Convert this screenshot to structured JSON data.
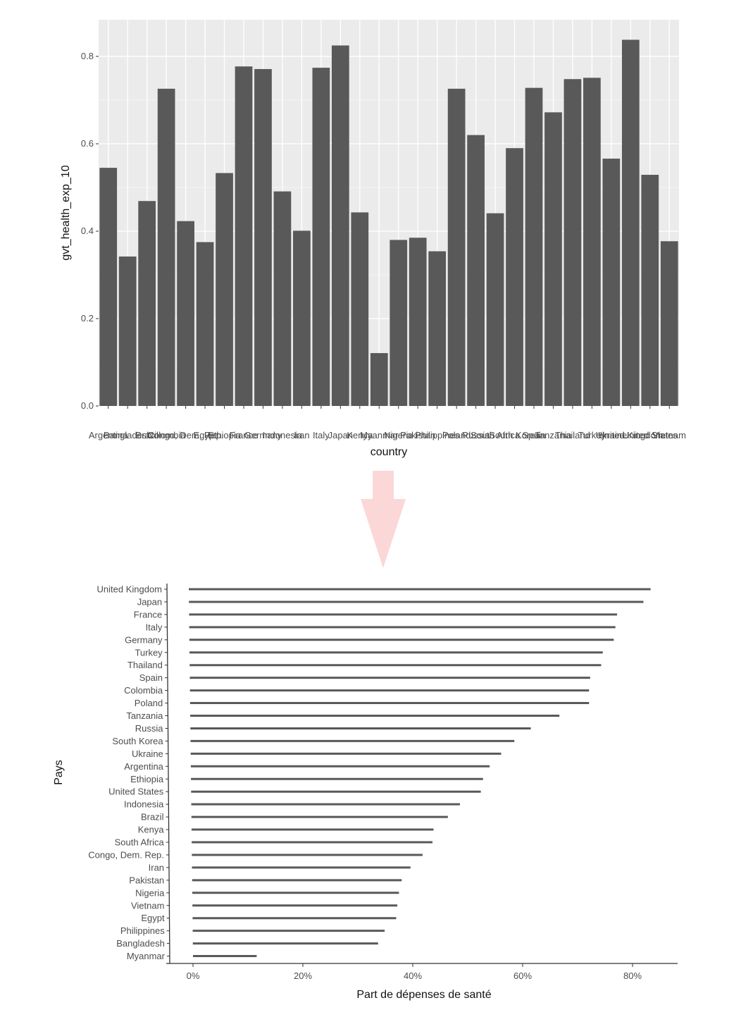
{
  "colors": {
    "panel_bg": "#ebebeb",
    "grid_major": "#ffffff",
    "bar": "#595959",
    "arrow": "#fcd7d7",
    "text": "#4d4d4d",
    "axis_line": "#333333"
  },
  "arrow_icon": "down-arrow-icon",
  "chart_data": [
    {
      "type": "bar",
      "xlabel": "country",
      "ylabel": "gvt_health_exp_10",
      "ylim": [
        0,
        0.88
      ],
      "yticks": [
        0.0,
        0.2,
        0.4,
        0.6,
        0.8
      ],
      "ytick_labels": [
        "0.0",
        "0.2",
        "0.4",
        "0.6",
        "0.8"
      ],
      "grid": true,
      "categories": [
        "Argentina",
        "Bangladesh",
        "Brazil",
        "Colombia",
        "Congo, Dem. Rep.",
        "Egypt",
        "Ethiopia",
        "France",
        "Germany",
        "Indonesia",
        "Iran",
        "Italy",
        "Japan",
        "Kenya",
        "Myanmar",
        "Nigeria",
        "Pakistan",
        "Philippines",
        "Poland",
        "Russia",
        "South Africa",
        "South Korea",
        "Spain",
        "Tanzania",
        "Thailand",
        "Turkey",
        "Ukraine",
        "United Kingdom",
        "United States",
        "Vietnam"
      ],
      "values": [
        0.545,
        0.342,
        0.469,
        0.726,
        0.423,
        0.375,
        0.533,
        0.777,
        0.771,
        0.491,
        0.401,
        0.774,
        0.825,
        0.443,
        0.121,
        0.38,
        0.385,
        0.354,
        0.726,
        0.62,
        0.441,
        0.59,
        0.728,
        0.672,
        0.748,
        0.751,
        0.566,
        0.838,
        0.529,
        0.377
      ]
    },
    {
      "type": "bar",
      "orientation": "horizontal",
      "xlabel": "Part de dépenses de santé",
      "ylabel": "Pays",
      "xlim": [
        -0.05,
        0.88
      ],
      "xticks": [
        0,
        0.2,
        0.4,
        0.6,
        0.8
      ],
      "xtick_labels": [
        "0%",
        "20%",
        "40%",
        "60%",
        "80%"
      ],
      "grid": false,
      "categories": [
        "United Kingdom",
        "Japan",
        "France",
        "Italy",
        "Germany",
        "Turkey",
        "Thailand",
        "Spain",
        "Colombia",
        "Poland",
        "Tanzania",
        "Russia",
        "South Korea",
        "Ukraine",
        "Argentina",
        "Ethiopia",
        "United States",
        "Indonesia",
        "Brazil",
        "Kenya",
        "South Africa",
        "Congo, Dem. Rep.",
        "Iran",
        "Pakistan",
        "Nigeria",
        "Vietnam",
        "Egypt",
        "Philippines",
        "Bangladesh",
        "Myanmar"
      ],
      "values": [
        0.838,
        0.825,
        0.777,
        0.774,
        0.771,
        0.751,
        0.748,
        0.728,
        0.726,
        0.726,
        0.672,
        0.62,
        0.59,
        0.566,
        0.545,
        0.533,
        0.529,
        0.491,
        0.469,
        0.443,
        0.441,
        0.423,
        0.401,
        0.385,
        0.38,
        0.377,
        0.375,
        0.354,
        0.342,
        0.121
      ]
    }
  ]
}
